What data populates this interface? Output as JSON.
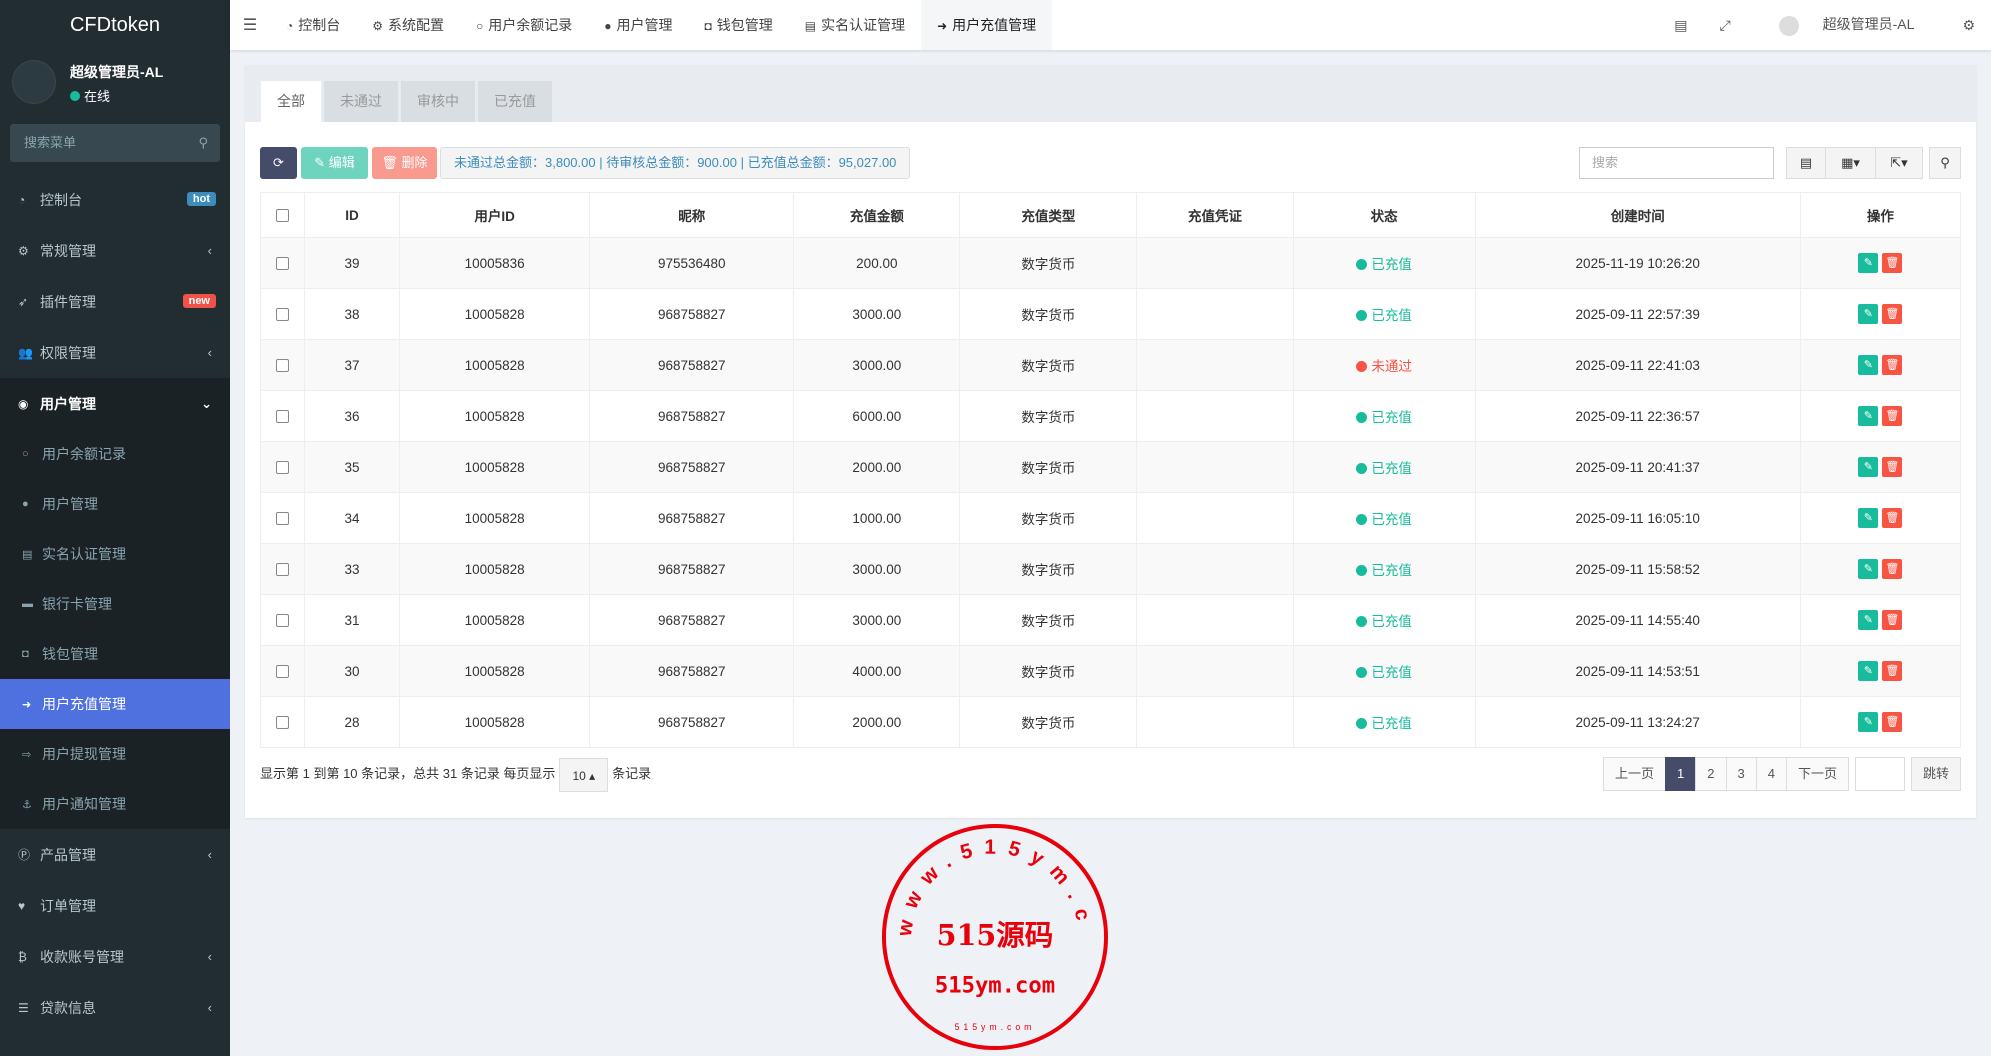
{
  "app": {
    "logo": "CFDtoken",
    "user": "超级管理员-AL",
    "status": "在线",
    "search_placeholder": "搜索菜单"
  },
  "sidebar": {
    "items": [
      {
        "label": "控制台",
        "icon": "dashboard-icon",
        "badge": "hot",
        "badge_color": "#3c8dbc"
      },
      {
        "label": "常规管理",
        "icon": "cogs-icon"
      },
      {
        "label": "插件管理",
        "icon": "rocket-icon",
        "badge": "new",
        "badge_color": "#f0524a"
      },
      {
        "label": "权限管理",
        "icon": "group-icon"
      },
      {
        "label": "用户管理",
        "icon": "user-circle-icon",
        "open": true,
        "children": [
          {
            "label": "用户余额记录",
            "icon": "circle-icon"
          },
          {
            "label": "用户管理",
            "icon": "user-icon"
          },
          {
            "label": "实名认证管理",
            "icon": "id-card-icon"
          },
          {
            "label": "银行卡管理",
            "icon": "credit-card-icon"
          },
          {
            "label": "钱包管理",
            "icon": "money-icon"
          },
          {
            "label": "用户充值管理",
            "icon": "sign-in-icon",
            "active": true
          },
          {
            "label": "用户提现管理",
            "icon": "sign-out-icon"
          },
          {
            "label": "用户通知管理",
            "icon": "anchor-icon"
          }
        ]
      },
      {
        "label": "产品管理",
        "icon": "product-hunt-icon"
      },
      {
        "label": "订单管理",
        "icon": "heartbeat-icon"
      },
      {
        "label": "收款账号管理",
        "icon": "bitcoin-icon"
      },
      {
        "label": "贷款信息",
        "icon": "list-icon"
      }
    ]
  },
  "header": {
    "tabs": [
      "控制台",
      "系统配置",
      "用户余额记录",
      "用户管理",
      "钱包管理",
      "实名认证管理",
      "用户充值管理"
    ],
    "user": "超级管理员-AL"
  },
  "main": {
    "tabs": [
      "全部",
      "未通过",
      "审核中",
      "已充值"
    ],
    "toolbar": {
      "edit": "编辑",
      "delete": "删除",
      "summary": "未通过总金额：3,800.00 | 待审核总金额：900.00 | 已充值总金额：95,027.00",
      "search_placeholder": "搜索"
    },
    "columns": [
      "ID",
      "用户ID",
      "昵称",
      "充值金额",
      "充值类型",
      "充值凭证",
      "状态",
      "创建时间",
      "操作"
    ],
    "rows": [
      [
        "39",
        "10005836",
        "975536480",
        "200.00",
        "数字货币",
        "",
        "已充值",
        "2025-11-19 10:26:20"
      ],
      [
        "38",
        "10005828",
        "968758827",
        "3000.00",
        "数字货币",
        "",
        "已充值",
        "2025-09-11 22:57:39"
      ],
      [
        "37",
        "10005828",
        "968758827",
        "3000.00",
        "数字货币",
        "",
        "未通过",
        "2025-09-11 22:41:03"
      ],
      [
        "36",
        "10005828",
        "968758827",
        "6000.00",
        "数字货币",
        "",
        "已充值",
        "2025-09-11 22:36:57"
      ],
      [
        "35",
        "10005828",
        "968758827",
        "2000.00",
        "数字货币",
        "",
        "已充值",
        "2025-09-11 20:41:37"
      ],
      [
        "34",
        "10005828",
        "968758827",
        "1000.00",
        "数字货币",
        "",
        "已充值",
        "2025-09-11 16:05:10"
      ],
      [
        "33",
        "10005828",
        "968758827",
        "3000.00",
        "数字货币",
        "",
        "已充值",
        "2025-09-11 15:58:52"
      ],
      [
        "31",
        "10005828",
        "968758827",
        "3000.00",
        "数字货币",
        "",
        "已充值",
        "2025-09-11 14:55:40"
      ],
      [
        "30",
        "10005828",
        "968758827",
        "4000.00",
        "数字货币",
        "",
        "已充值",
        "2025-09-11 14:53:51"
      ],
      [
        "28",
        "10005828",
        "968758827",
        "2000.00",
        "数字货币",
        "",
        "已充值",
        "2025-09-11 13:24:27"
      ]
    ],
    "status_colors": {
      "已充值": "#18bc9c",
      "未通过": "#f75444"
    },
    "footer": {
      "info_prefix": "显示第 1 到第 10 条记录，总共 31 条记录 每页显示",
      "page_size": "10",
      "info_suffix": "条记录",
      "prev": "上一页",
      "pages": [
        "1",
        "2",
        "3",
        "4"
      ],
      "next": "下一页",
      "jump": "跳转"
    }
  },
  "watermark": {
    "center": "515源码",
    "domain": "515ym.com",
    "ring": "www.515ym.com",
    "small": "515ym.com"
  }
}
